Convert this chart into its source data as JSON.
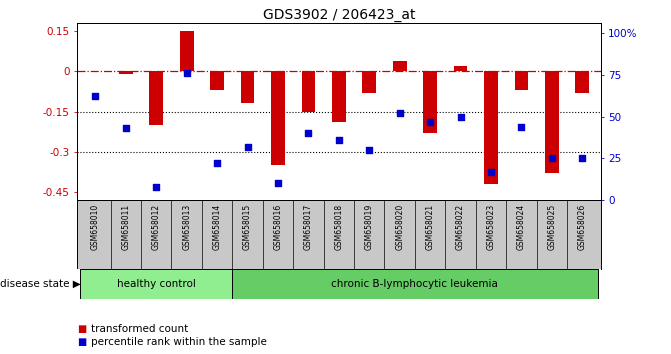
{
  "title": "GDS3902 / 206423_at",
  "samples": [
    "GSM658010",
    "GSM658011",
    "GSM658012",
    "GSM658013",
    "GSM658014",
    "GSM658015",
    "GSM658016",
    "GSM658017",
    "GSM658018",
    "GSM658019",
    "GSM658020",
    "GSM658021",
    "GSM658022",
    "GSM658023",
    "GSM658024",
    "GSM658025",
    "GSM658026"
  ],
  "bar_values": [
    0.0,
    -0.01,
    -0.2,
    0.15,
    -0.07,
    -0.12,
    -0.35,
    -0.15,
    -0.19,
    -0.08,
    0.04,
    -0.23,
    0.02,
    -0.42,
    -0.07,
    -0.38,
    -0.08
  ],
  "percentile_values": [
    62,
    43,
    8,
    76,
    22,
    32,
    10,
    40,
    36,
    30,
    52,
    47,
    50,
    17,
    44,
    25,
    25
  ],
  "ylim_left": [
    -0.48,
    0.18
  ],
  "ylim_right": [
    0,
    106
  ],
  "yticks_left": [
    0.15,
    0.0,
    -0.15,
    -0.3,
    -0.45
  ],
  "yticks_right": [
    0,
    25,
    50,
    75,
    100
  ],
  "bar_color": "#cc0000",
  "scatter_color": "#0000cc",
  "healthy_count": 5,
  "group_labels": [
    "healthy control",
    "chronic B-lymphocytic leukemia"
  ],
  "disease_state_label": "disease state",
  "legend_bar": "transformed count",
  "legend_scatter": "percentile rank within the sample",
  "background_color": "#ffffff",
  "label_area_color": "#c8c8c8",
  "group_healthy_color": "#90ee90",
  "group_leukemia_color": "#66cc66"
}
